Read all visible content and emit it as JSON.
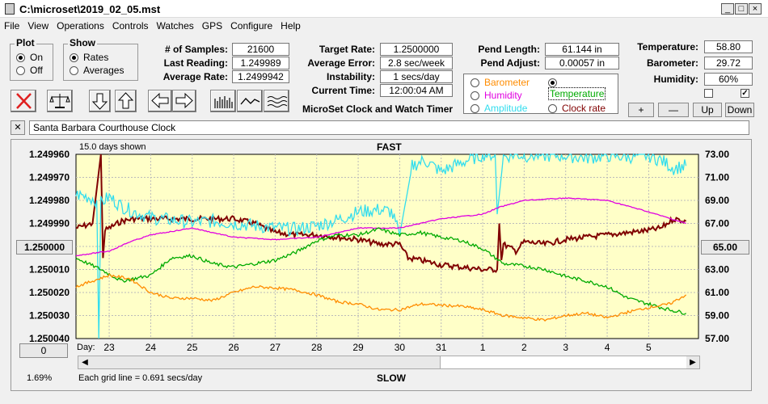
{
  "window": {
    "title": "C:\\microset\\2019_02_05.mst"
  },
  "menu": [
    "File",
    "View",
    "Operations",
    "Controls",
    "Watches",
    "GPS",
    "Configure",
    "Help"
  ],
  "plot": {
    "title": "Plot",
    "on": "On",
    "off": "Off",
    "selected": "On"
  },
  "show": {
    "title": "Show",
    "rates": "Rates",
    "averages": "Averages",
    "selected": "Rates"
  },
  "stats": {
    "samples_label": "# of Samples:",
    "samples": "21600",
    "last_label": "Last Reading:",
    "last": "1.249989",
    "avg_label": "Average Rate:",
    "avg": "1.2499942",
    "target_label": "Target Rate:",
    "target": "1.2500000",
    "avgerr_label": "Average Error:",
    "avgerr": "2.8 sec/week",
    "instab_label": "Instability:",
    "instab": "1 secs/day",
    "time_label": "Current Time:",
    "time": "12:00:04 AM",
    "pendlen_label": "Pend Length:",
    "pendlen": "61.144 in",
    "pendadj_label": "Pend Adjust:",
    "pendadj": "0.00057 in",
    "temp_label": "Temperature:",
    "temp": "58.80",
    "baro_label": "Barometer:",
    "baro": "29.72",
    "hum_label": "Humidity:",
    "hum": "60%"
  },
  "subtitle": "MicroSet Clock and Watch Timer",
  "sensors": {
    "barometer": "Barometer",
    "temperature": "Temperature",
    "humidity": "Humidity",
    "amplitude": "Amplitude",
    "clockrate": "Clock rate",
    "selected": "Temperature"
  },
  "right_buttons": {
    "plus": "+",
    "minus": "—",
    "up": "Up",
    "down": "Down"
  },
  "clock_name": "Santa Barbara Courthouse Clock",
  "clear_button": "✕",
  "chart_header": {
    "days_shown": "15.0 days shown",
    "fast": "FAST",
    "slow": "SLOW",
    "grid_note": "Each grid line = 0.691 secs/day",
    "percent": "1.69%",
    "day_label": "Day:",
    "left_center": "1.250000",
    "right_center": "65.00",
    "zero": "0"
  },
  "colors": {
    "barometer": "#ff8c00",
    "temperature": "#00aa00",
    "humidity": "#e000e0",
    "amplitude": "#33ddee",
    "clockrate": "#800000",
    "plotbg": "#ffffc8"
  },
  "chart_data": {
    "type": "line",
    "y_left": {
      "ticks": [
        "1.249960",
        "1.249970",
        "1.249980",
        "1.249990",
        "1.250000",
        "1.250010",
        "1.250020",
        "1.250030",
        "1.250040"
      ],
      "range": [
        1.24996,
        1.25004
      ]
    },
    "y_right": {
      "ticks": [
        "73.00",
        "71.00",
        "69.00",
        "67.00",
        "65.00",
        "63.00",
        "61.00",
        "59.00",
        "57.00"
      ],
      "range": [
        57,
        73
      ]
    },
    "x_ticks": [
      "23",
      "24",
      "25",
      "26",
      "27",
      "28",
      "29",
      "30",
      "31",
      "1",
      "2",
      "3",
      "4",
      "5"
    ],
    "x_range": [
      22.2,
      37.2
    ],
    "x_tick_pos": [
      23,
      24,
      25,
      26,
      27,
      28,
      29,
      30,
      31,
      32,
      33,
      34,
      35,
      36
    ],
    "series": [
      {
        "key": "clockrate",
        "axis": "left",
        "x": [
          22.2,
          22.6,
          22.8,
          22.85,
          22.9,
          23.0,
          23.3,
          23.6,
          24.0,
          24.5,
          25.0,
          25.5,
          26.0,
          26.5,
          27.0,
          27.5,
          28.0,
          28.5,
          29.0,
          29.5,
          30.0,
          30.2,
          30.5,
          31.0,
          31.5,
          32.0,
          32.35,
          32.4,
          32.45,
          32.5,
          32.8,
          33.0,
          33.5,
          34.0,
          34.5,
          35.0,
          35.5,
          36.0,
          36.3,
          36.6,
          36.9
        ],
        "y": [
          1.249992,
          1.24999,
          1.24996,
          1.250005,
          1.249993,
          1.249992,
          1.249989,
          1.249988,
          1.249988,
          1.249988,
          1.249988,
          1.249988,
          1.249988,
          1.24999,
          1.249994,
          1.249995,
          1.249995,
          1.249996,
          1.249997,
          1.249999,
          1.249999,
          1.250005,
          1.250006,
          1.250008,
          1.250009,
          1.25001,
          1.25001,
          1.24999,
          1.250006,
          1.249999,
          1.250002,
          1.249998,
          1.249999,
          1.249997,
          1.249996,
          1.249995,
          1.249994,
          1.249993,
          1.249992,
          1.249988,
          1.249989
        ]
      },
      {
        "key": "amplitude",
        "axis": "right",
        "x": [
          22.2,
          22.5,
          22.7,
          22.75,
          22.8,
          23.0,
          23.3,
          23.6,
          24.0,
          24.5,
          25.0,
          25.5,
          26.0,
          26.5,
          27.0,
          27.5,
          28.0,
          28.5,
          29.0,
          29.5,
          29.8,
          30.0,
          30.3,
          30.6,
          31.0,
          31.5,
          32.0,
          32.3,
          32.35,
          32.5,
          32.8,
          33.0,
          33.5,
          34.0,
          34.5,
          35.0,
          35.5,
          36.0,
          36.3,
          36.6,
          36.9
        ],
        "y": [
          69.5,
          69.3,
          69.0,
          57.0,
          68.8,
          69.3,
          68.5,
          68.0,
          67.5,
          67.3,
          67.1,
          67.2,
          67.0,
          66.8,
          66.6,
          66.5,
          66.8,
          67.3,
          68.0,
          68.2,
          68.0,
          66.0,
          72.0,
          72.5,
          71.5,
          72.3,
          73.0,
          73.0,
          67.8,
          72.8,
          73.0,
          72.9,
          72.9,
          72.9,
          72.7,
          72.9,
          72.8,
          72.9,
          72.5,
          71.8,
          72.0
        ]
      },
      {
        "key": "humidity",
        "axis": "left",
        "x": [
          22.2,
          23.0,
          23.5,
          24.0,
          25.0,
          26.0,
          27.0,
          28.0,
          29.0,
          30.0,
          31.0,
          32.0,
          32.4,
          33.0,
          34.0,
          35.0,
          36.0,
          36.9
        ],
        "y": [
          1.250004,
          1.250002,
          1.249998,
          1.249995,
          1.249992,
          1.249996,
          1.249997,
          1.249996,
          1.249992,
          1.249992,
          1.249988,
          1.249986,
          1.249983,
          1.24998,
          1.249979,
          1.24998,
          1.249985,
          1.24999
        ]
      },
      {
        "key": "temperature",
        "axis": "right",
        "x": [
          22.2,
          22.8,
          23.3,
          23.6,
          24.0,
          24.5,
          25.0,
          25.5,
          26.0,
          26.5,
          27.0,
          27.5,
          28.0,
          28.5,
          29.0,
          29.5,
          30.0,
          30.5,
          31.0,
          31.5,
          32.0,
          32.5,
          33.0,
          33.5,
          34.0,
          34.5,
          35.0,
          35.5,
          36.0,
          36.5,
          36.9
        ],
        "y": [
          64.0,
          63.0,
          62.0,
          62.2,
          62.5,
          64.0,
          64.2,
          63.5,
          63.2,
          63.5,
          63.8,
          64.5,
          65.5,
          66.0,
          66.0,
          66.5,
          66.0,
          66.2,
          65.8,
          65.5,
          64.8,
          63.5,
          63.3,
          63.0,
          62.4,
          62.0,
          61.5,
          60.5,
          60.0,
          59.5,
          59.2
        ]
      },
      {
        "key": "barometer",
        "axis": "right",
        "x": [
          22.2,
          22.6,
          23.0,
          23.5,
          24.0,
          24.5,
          25.0,
          25.5,
          26.0,
          26.5,
          27.0,
          27.5,
          28.0,
          28.5,
          29.0,
          29.5,
          30.0,
          30.5,
          31.0,
          31.5,
          32.0,
          32.5,
          33.0,
          33.5,
          34.0,
          34.5,
          35.0,
          35.5,
          36.0,
          36.5,
          36.9
        ],
        "y": [
          61.5,
          62.0,
          62.5,
          62.2,
          61.0,
          60.5,
          60.5,
          60.3,
          61.0,
          61.5,
          61.4,
          61.2,
          60.8,
          60.2,
          60.0,
          59.5,
          59.5,
          60.0,
          59.9,
          59.8,
          59.5,
          59.0,
          58.8,
          58.6,
          59.0,
          59.2,
          58.8,
          59.3,
          59.7,
          60.0,
          60.8
        ]
      }
    ]
  }
}
